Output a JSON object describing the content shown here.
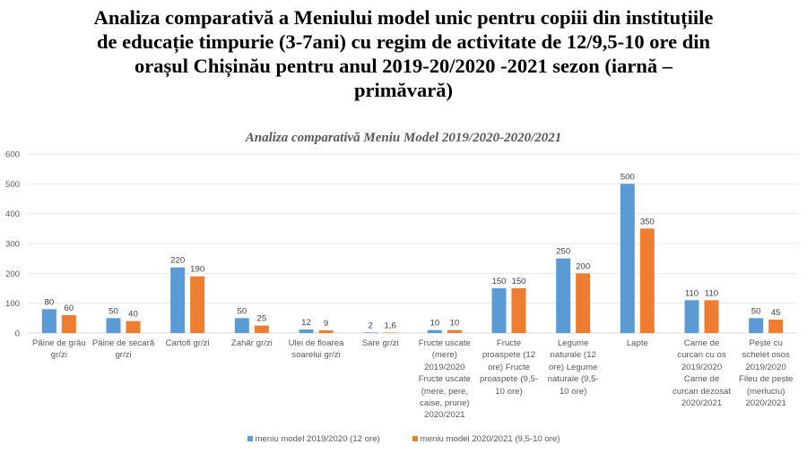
{
  "title": "Analiza comparativă a Meniului model unic pentru copiii din instituțiile\nde educație timpurie (3-7ani) cu regim de activitate de 12/9,5-10 ore din\norașul Chișinău pentru anul 2019-20/2020 -2021 sezon (iarnă –\nprimăvară)",
  "chart_data": {
    "type": "bar",
    "title": "Analiza comparativă Meniu Model 2019/2020-2020/2021",
    "xlabel": "",
    "ylabel": "",
    "ylim": [
      0,
      600
    ],
    "yticks": [
      0,
      100,
      200,
      300,
      400,
      500,
      600
    ],
    "grid": true,
    "legend_position": "bottom",
    "categories": [
      "Pâine de grâu\ngr/zi",
      "Pâine de secară\ngr/zi",
      "Cartofi gr/zi",
      "Zahăr gr/zi",
      "Ulei de floarea\nsoarelui gr/zi",
      "Sare gr/zi",
      "Fructe uscate\n(mere)\n2019/2020\nFructe uscate\n(mere, pere,\ncaise, prune)\n2020/2021",
      "Fructe\nproaspete (12\nore) Fructe\nproaspete (9,5-\n10 ore)",
      "Legume\nnaturale (12\nore) Legume\nnaturale (9,5-\n10 ore)",
      "Lapte",
      "Carne de\ncurcan cu os\n2019/2020\nCarne de\ncurcan dezosat\n2020/2021",
      "Pește cu\nschelet osos\n2019/2020\nFileu de pește\n(merluciu)\n2020/2021"
    ],
    "series": [
      {
        "name": "meniu model 2019/2020 (12 ore)",
        "color": "#5B9BD5",
        "values": [
          80,
          50,
          220,
          50,
          12,
          2,
          10,
          150,
          250,
          500,
          110,
          50
        ],
        "labels": [
          "80",
          "50",
          "220",
          "50",
          "12",
          "2",
          "10",
          "150",
          "250",
          "500",
          "110",
          "50"
        ]
      },
      {
        "name": "meniu model 2020/2021 (9,5-10 ore)",
        "color": "#ED7D31",
        "values": [
          60,
          40,
          190,
          25,
          9,
          1.6,
          10,
          150,
          200,
          350,
          110,
          45
        ],
        "labels": [
          "60",
          "40",
          "190",
          "25",
          "9",
          "1,6",
          "10",
          "150",
          "200",
          "350",
          "110",
          "45"
        ]
      }
    ]
  }
}
